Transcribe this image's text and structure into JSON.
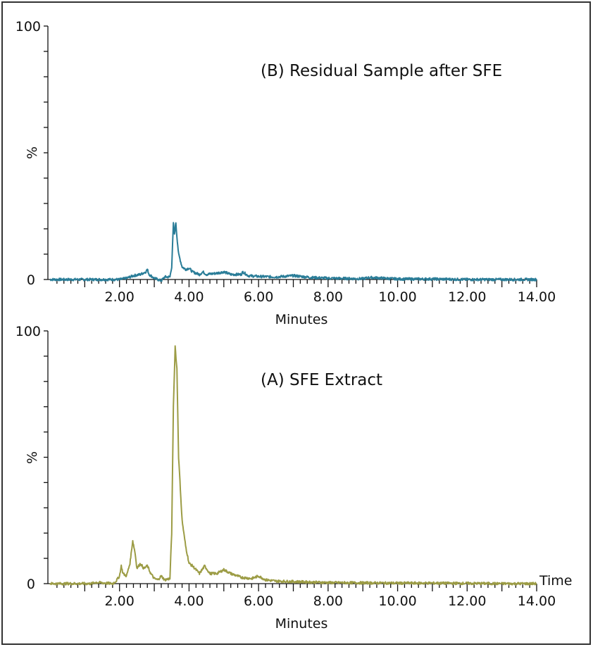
{
  "chart_data": [
    {
      "type": "line",
      "title": "(B) Residual Sample after SFE",
      "xlabel": "Minutes",
      "ylabel": "%",
      "xlim": [
        0,
        14
      ],
      "ylim": [
        0,
        100
      ],
      "x_tick_labels": [
        "2.00",
        "4.00",
        "6.00",
        "8.00",
        "10.00",
        "12.00",
        "14.00"
      ],
      "y_tick_labels": [
        "0",
        "100"
      ],
      "color": "#2a7d98",
      "series": [
        {
          "name": "Residual Sample after SFE",
          "x": [
            0,
            1.0,
            2.0,
            2.2,
            2.4,
            2.6,
            2.75,
            2.8,
            2.85,
            3.0,
            3.2,
            3.3,
            3.45,
            3.5,
            3.55,
            3.58,
            3.62,
            3.65,
            3.7,
            3.8,
            3.9,
            4.0,
            4.1,
            4.3,
            4.4,
            4.5,
            4.8,
            5.0,
            5.2,
            5.5,
            5.55,
            5.7,
            6.0,
            6.5,
            7.0,
            7.5,
            8.0,
            9.0,
            9.2,
            10.0,
            11.0,
            12.0,
            13.0,
            14.0
          ],
          "y": [
            0,
            0,
            0,
            0.5,
            1.5,
            2,
            3,
            4,
            2,
            0.5,
            -0.5,
            1,
            1,
            5,
            22,
            18,
            22.5,
            17,
            10,
            5,
            4,
            4.5,
            3,
            2,
            3,
            2,
            2.5,
            3,
            2,
            2,
            3,
            1.5,
            1.2,
            1,
            1.5,
            0.8,
            0.5,
            0.3,
            0.8,
            0.2,
            0.2,
            0,
            0,
            0
          ]
        }
      ]
    },
    {
      "type": "line",
      "title": "(A) SFE Extract",
      "xlabel": "Minutes",
      "ylabel": "%",
      "xlim": [
        0,
        14
      ],
      "ylim": [
        0,
        100
      ],
      "x_axis_end_label": "Time",
      "x_tick_labels": [
        "2.00",
        "4.00",
        "6.00",
        "8.00",
        "10.00",
        "12.00",
        "14.00"
      ],
      "y_tick_labels": [
        "0",
        "100"
      ],
      "color": "#9c9c45",
      "series": [
        {
          "name": "SFE Extract",
          "x": [
            0,
            1.2,
            1.3,
            1.8,
            1.9,
            2.0,
            2.05,
            2.1,
            2.2,
            2.3,
            2.38,
            2.45,
            2.5,
            2.6,
            2.7,
            2.8,
            2.9,
            3.0,
            3.1,
            3.2,
            3.3,
            3.45,
            3.5,
            3.55,
            3.6,
            3.65,
            3.7,
            3.8,
            3.85,
            3.9,
            4.0,
            4.1,
            4.3,
            4.45,
            4.6,
            4.8,
            5.0,
            5.2,
            5.5,
            5.8,
            6.0,
            6.2,
            6.5,
            7.0,
            7.5,
            8.0,
            9.0,
            10.0,
            11.0,
            12.0,
            13.0,
            14.0
          ],
          "y": [
            0,
            0,
            0.5,
            0,
            1,
            3,
            7,
            4,
            3,
            8,
            17,
            12,
            6,
            8,
            6,
            7,
            4,
            2,
            1.5,
            3,
            1.5,
            2,
            20,
            70,
            94,
            85,
            50,
            25,
            20,
            15,
            8,
            7,
            4,
            7,
            4,
            4,
            5.5,
            4,
            2.5,
            2,
            3,
            1.5,
            1,
            0.8,
            0.6,
            0.4,
            0.3,
            0.2,
            0.2,
            0.1,
            0,
            0
          ]
        }
      ]
    }
  ]
}
